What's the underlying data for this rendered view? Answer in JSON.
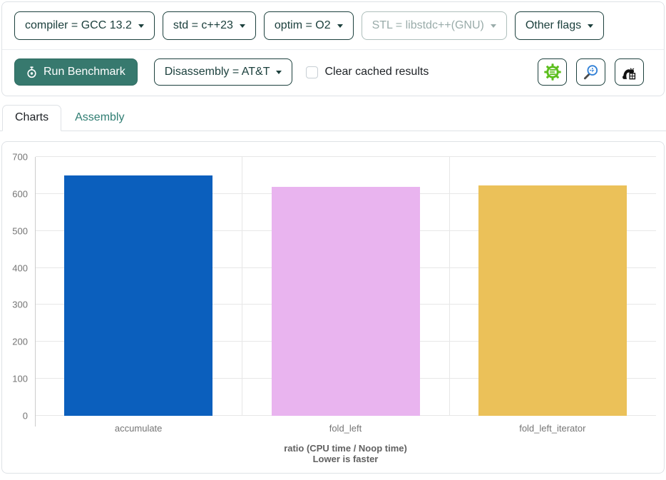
{
  "toolbar": {
    "config_buttons": [
      {
        "label": "compiler = GCC 13.2",
        "disabled": false
      },
      {
        "label": "std = c++23",
        "disabled": false
      },
      {
        "label": "optim = O2",
        "disabled": false
      },
      {
        "label": "STL = libstdc++(GNU)",
        "disabled": true
      },
      {
        "label": "Other flags",
        "disabled": false
      }
    ],
    "run_button_label": "Run Benchmark",
    "disassembly_button_label": "Disassembly = AT&T",
    "clear_cached_label": "Clear cached results",
    "clear_cached_checked": false,
    "external_tool_icons": [
      "gear-lines-icon",
      "magnifier-plus-icon",
      "cat-box-icon"
    ]
  },
  "tabs": [
    {
      "label": "Charts",
      "active": true
    },
    {
      "label": "Assembly",
      "active": false
    }
  ],
  "chart_data": {
    "type": "bar",
    "categories": [
      "accumulate",
      "fold_left",
      "fold_left_iterator"
    ],
    "values": [
      650,
      619,
      623
    ],
    "bar_colors": [
      "#0b5fbd",
      "#e9b4ef",
      "#ebc159"
    ],
    "title": "ratio (CPU time / Noop time)",
    "subtitle": "Lower is faster",
    "xlabel": "",
    "ylabel": "",
    "ylim": [
      0,
      700
    ],
    "ytick_step": 100,
    "grid": true,
    "legend": "none"
  },
  "colors": {
    "accent_teal": "#1c403d",
    "run_button_bg": "#37796e",
    "tab_link_teal": "#2f7d72",
    "grid_gray": "#e7e7e7",
    "tick_text_gray": "#757575"
  }
}
